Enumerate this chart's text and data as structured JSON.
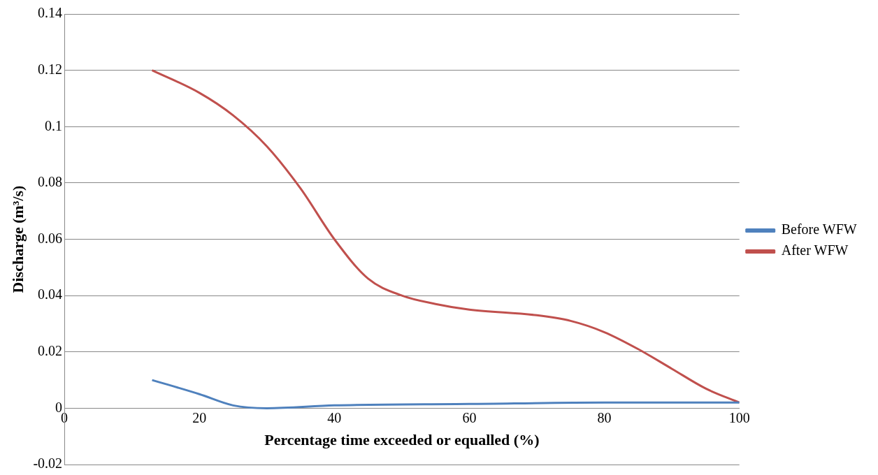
{
  "chart_data": {
    "type": "line",
    "xlabel": "Percentage time exceeded or equalled (%)",
    "ylabel": "Discharge (m³/s)",
    "xlim": [
      0,
      100
    ],
    "xticks": [
      0,
      20,
      40,
      60,
      80,
      100
    ],
    "ylim": [
      -0.02,
      0.14
    ],
    "yticks": [
      -0.02,
      0,
      0.02,
      0.04,
      0.06,
      0.08,
      0.1,
      0.12,
      0.14
    ],
    "grid": "y",
    "legend": "right",
    "marker": "none",
    "line_style": "solid",
    "series": [
      {
        "name": "Before WFW",
        "color": "#4f81bd",
        "x": [
          13,
          20,
          25,
          30,
          40,
          60,
          80,
          100
        ],
        "values": [
          0.01,
          0.005,
          0.001,
          0.0,
          0.001,
          0.0015,
          0.002,
          0.002
        ]
      },
      {
        "name": "After WFW",
        "color": "#c0504d",
        "x": [
          13,
          20,
          25,
          30,
          35,
          40,
          45,
          50,
          55,
          60,
          70,
          75,
          80,
          85,
          90,
          95,
          100
        ],
        "values": [
          0.12,
          0.112,
          0.104,
          0.093,
          0.078,
          0.06,
          0.046,
          0.04,
          0.037,
          0.035,
          0.033,
          0.031,
          0.027,
          0.021,
          0.014,
          0.007,
          0.002
        ]
      }
    ]
  }
}
